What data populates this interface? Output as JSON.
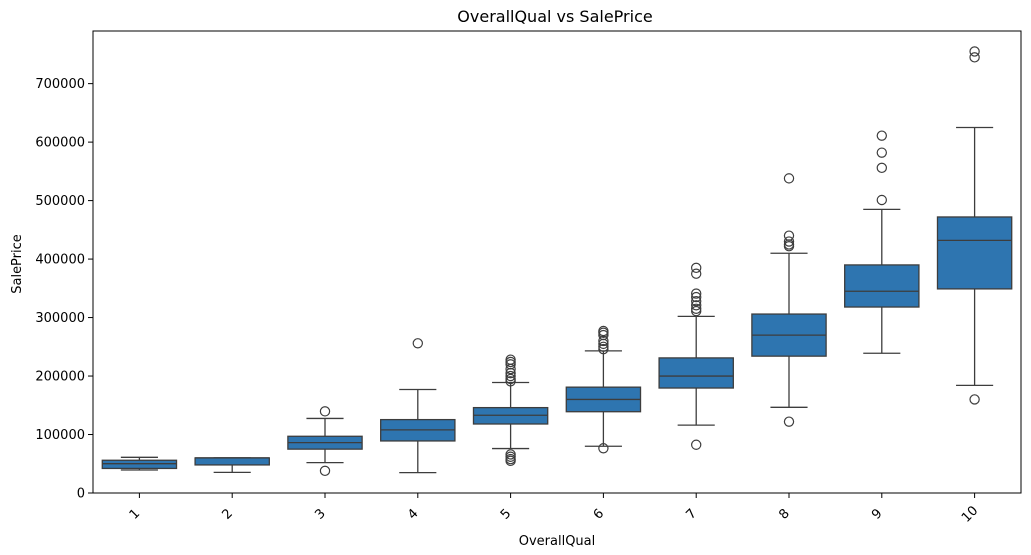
{
  "chart_data": {
    "type": "box",
    "title": "OverallQual vs SalePrice",
    "xlabel": "OverallQual",
    "ylabel": "SalePrice",
    "ylim": [
      0,
      790000
    ],
    "yticks": [
      0,
      100000,
      200000,
      300000,
      400000,
      500000,
      600000,
      700000
    ],
    "ytick_labels": [
      "0",
      "100000",
      "200000",
      "300000",
      "400000",
      "500000",
      "600000",
      "700000"
    ],
    "categories": [
      "1",
      "2",
      "3",
      "4",
      "5",
      "6",
      "7",
      "8",
      "9",
      "10"
    ],
    "color": "#2e75b0",
    "boxes": [
      {
        "category": "1",
        "whisker_low": 39300,
        "q1": 42000,
        "median": 50100,
        "q3": 56000,
        "whisker_high": 61000,
        "outliers": []
      },
      {
        "category": "2",
        "whisker_low": 35300,
        "q1": 48000,
        "median": 60000,
        "q3": 60000,
        "whisker_high": 60000,
        "outliers": []
      },
      {
        "category": "3",
        "whisker_low": 52000,
        "q1": 75000,
        "median": 86200,
        "q3": 97000,
        "whisker_high": 127500,
        "outliers": [
          139600,
          37900
        ]
      },
      {
        "category": "4",
        "whisker_low": 34900,
        "q1": 89000,
        "median": 108000,
        "q3": 125500,
        "whisker_high": 177000,
        "outliers": [
          256000
        ]
      },
      {
        "category": "5",
        "whisker_low": 76000,
        "q1": 118000,
        "median": 133000,
        "q3": 146000,
        "whisker_high": 189000,
        "outliers": [
          228000,
          224000,
          220000,
          212000,
          205000,
          200000,
          195000,
          191000,
          66000,
          62000,
          58000,
          55000
        ]
      },
      {
        "category": "6",
        "whisker_low": 80000,
        "q1": 139000,
        "median": 160000,
        "q3": 181000,
        "whisker_high": 243000,
        "outliers": [
          277000,
          274000,
          270000,
          260000,
          255000,
          250000,
          246000,
          76500
        ]
      },
      {
        "category": "7",
        "whisker_low": 116000,
        "q1": 179500,
        "median": 200000,
        "q3": 231000,
        "whisker_high": 302000,
        "outliers": [
          385000,
          375000,
          341000,
          335000,
          328000,
          321000,
          315000,
          311000,
          82500
        ]
      },
      {
        "category": "8",
        "whisker_low": 146500,
        "q1": 234000,
        "median": 270000,
        "q3": 306000,
        "whisker_high": 410000,
        "outliers": [
          538000,
          440000,
          430000,
          425000,
          422000,
          122000
        ]
      },
      {
        "category": "9",
        "whisker_low": 239000,
        "q1": 318000,
        "median": 345000,
        "q3": 390000,
        "whisker_high": 485000,
        "outliers": [
          611000,
          582000,
          556000,
          501000
        ]
      },
      {
        "category": "10",
        "whisker_low": 184000,
        "q1": 349000,
        "median": 432000,
        "q3": 472000,
        "whisker_high": 625000,
        "outliers": [
          755000,
          745000,
          160000
        ]
      }
    ]
  }
}
